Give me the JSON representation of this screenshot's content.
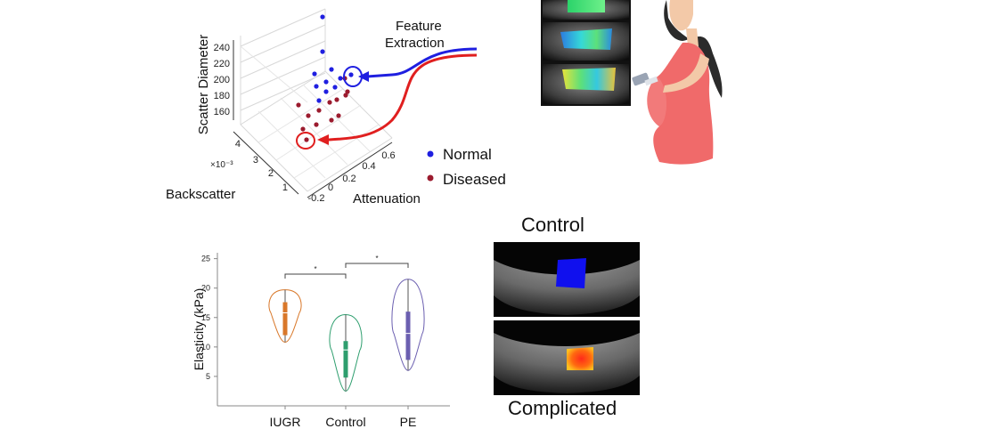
{
  "scatter_panel": {
    "z_axis_label": "Scatter Diameter",
    "y_axis_label": "Backscatter",
    "x_axis_label": "Attenuation",
    "y_exponent": "×10⁻³",
    "z_ticks": [
      "240",
      "220",
      "200",
      "180",
      "160"
    ],
    "y_ticks": [
      "4",
      "3",
      "2",
      "1"
    ],
    "x_ticks": [
      "-0.2",
      "0",
      "0.2",
      "0.4",
      "0.6"
    ],
    "feature_label_line1": "Feature",
    "feature_label_line2": "Extraction",
    "legend": [
      {
        "label": "Normal",
        "color": "#1f1fe0"
      },
      {
        "label": "Diseased",
        "color": "#9b1b2e"
      }
    ]
  },
  "violin_panel": {
    "ylabel": "Elasticity (kPa)",
    "y_ticks": [
      "25",
      "20",
      "15",
      "10",
      "5"
    ],
    "categories": [
      "IUGR",
      "Control",
      "PE"
    ],
    "significance_marks": [
      "*",
      "*"
    ]
  },
  "ultrasound_panel": {
    "top_label": "Control",
    "bottom_label": "Complicated"
  },
  "chart_data": {
    "type": "violin",
    "categories": [
      "IUGR",
      "Control",
      "PE"
    ],
    "ylabel": "Elasticity (kPa)",
    "ylim": [
      0,
      26
    ],
    "series": [
      {
        "category": "IUGR",
        "color": "#d9782a",
        "min": 10.8,
        "q1": 12.0,
        "median": 15.8,
        "q3": 17.6,
        "max": 19.7
      },
      {
        "category": "Control",
        "color": "#2e9e6e",
        "min": 2.5,
        "q1": 4.8,
        "median": 9.5,
        "q3": 11.0,
        "max": 15.5
      },
      {
        "category": "PE",
        "color": "#6b5fb0",
        "min": 6.0,
        "q1": 7.8,
        "median": 12.3,
        "q3": 16.0,
        "max": 21.5
      }
    ],
    "significance": [
      {
        "pair": [
          "IUGR",
          "Control"
        ],
        "mark": "*"
      },
      {
        "pair": [
          "Control",
          "PE"
        ],
        "mark": "*"
      }
    ]
  }
}
